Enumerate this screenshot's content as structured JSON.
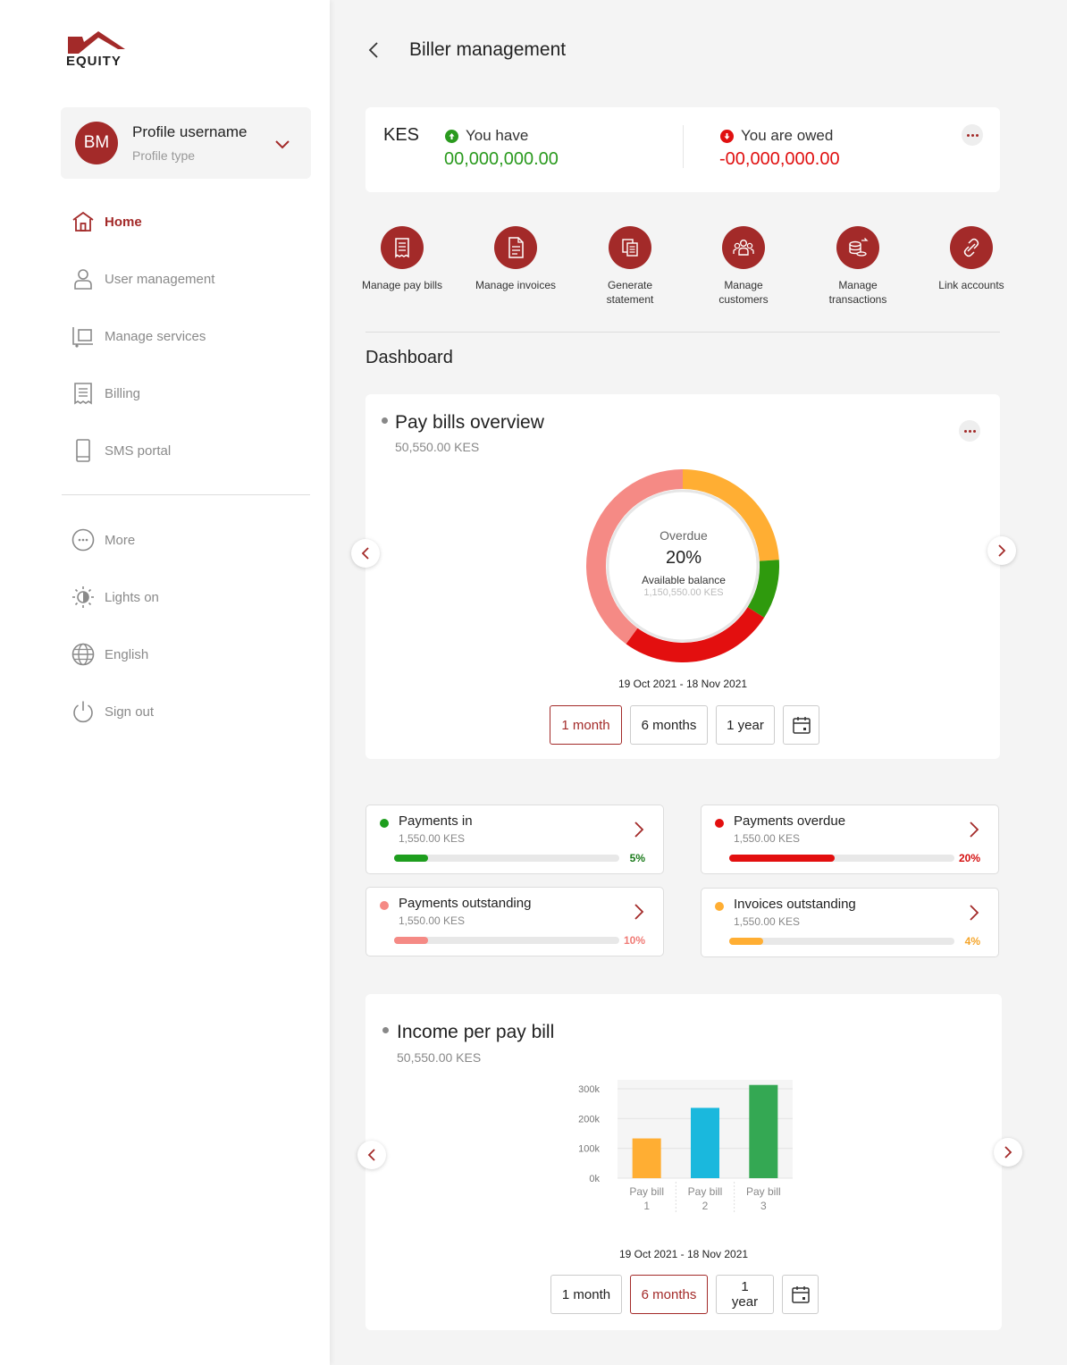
{
  "brand": {
    "name": "EQUITY",
    "accent": "#a32a29"
  },
  "profile": {
    "initials": "BM",
    "username": "Profile username",
    "type": "Profile type"
  },
  "nav": {
    "home": "Home",
    "user_management": "User management",
    "manage_services": "Manage services",
    "billing": "Billing",
    "sms_portal": "SMS portal",
    "more": "More",
    "lights": "Lights on",
    "language": "English",
    "sign_out": "Sign out"
  },
  "header": {
    "title": "Biller management"
  },
  "balance": {
    "currency": "KES",
    "have_label": "You have",
    "have_value": "00,000,000.00",
    "owed_label": "You are owed",
    "owed_value": "-00,000,000.00"
  },
  "actions": [
    {
      "label": "Manage pay bills",
      "icon": "receipt-icon"
    },
    {
      "label": "Manage invoices",
      "icon": "document-icon"
    },
    {
      "label": "Generate statement",
      "icon": "statement-icon"
    },
    {
      "label": "Manage customers",
      "icon": "customers-icon"
    },
    {
      "label": "Manage transactions",
      "icon": "coins-transfer-icon"
    },
    {
      "label": "Link accounts",
      "icon": "link-icon"
    }
  ],
  "dashboard": {
    "title": "Dashboard"
  },
  "overview": {
    "title": "Pay bills overview",
    "subtitle": "50,550.00 KES",
    "center_label": "Overdue",
    "center_value": "20%",
    "balance_label": "Available balance",
    "balance_value": "1,150,550.00 KES",
    "date_range": "19 Oct 2021 - 18 Nov 2021",
    "periods": [
      "1 month",
      "6 months",
      "1 year"
    ],
    "selected_period": "1 month"
  },
  "stats": [
    {
      "title": "Payments in",
      "amount": "1,550.00 KES",
      "percent_label": "5%",
      "fraction": 0.15,
      "color": "#1e9e1e",
      "pct_color": "#1a7a1a"
    },
    {
      "title": "Payments overdue",
      "amount": "1,550.00 KES",
      "percent_label": "20%",
      "fraction": 0.47,
      "color": "#e30f0f",
      "pct_color": "#d41010"
    },
    {
      "title": "Payments outstanding",
      "amount": "1,550.00 KES",
      "percent_label": "10%",
      "fraction": 0.15,
      "color": "#f58a85",
      "pct_color": "#f07b76"
    },
    {
      "title": "Invoices outstanding",
      "amount": "1,550.00 KES",
      "percent_label": "4%",
      "fraction": 0.15,
      "color": "#ffae33",
      "pct_color": "#f5a52a"
    }
  ],
  "income": {
    "title": "Income per pay bill",
    "subtitle": "50,550.00 KES",
    "date_range": "19 Oct 2021 - 18 Nov 2021",
    "periods": [
      "1 month",
      "6 months",
      "1 year"
    ],
    "selected_period": "6 months"
  },
  "chart_data": [
    {
      "type": "pie",
      "labels": [
        "Invoices outstanding",
        "Payments in",
        "Payments overdue",
        "Payments outstanding"
      ],
      "values": [
        24,
        10,
        26,
        40
      ],
      "colors": [
        "#ffae33",
        "#2f9a0d",
        "#e30f0f",
        "#f58a85"
      ],
      "center_text": "20%"
    },
    {
      "type": "bar",
      "categories": [
        "Pay bill 1",
        "Pay bill 2",
        "Pay bill 3"
      ],
      "values": [
        130000,
        230000,
        305000
      ],
      "colors": [
        "#ffae33",
        "#1ab8dd",
        "#34a853"
      ],
      "yticks": [
        "0k",
        "100k",
        "200k",
        "300k"
      ],
      "ylim": [
        0,
        310000
      ]
    }
  ]
}
